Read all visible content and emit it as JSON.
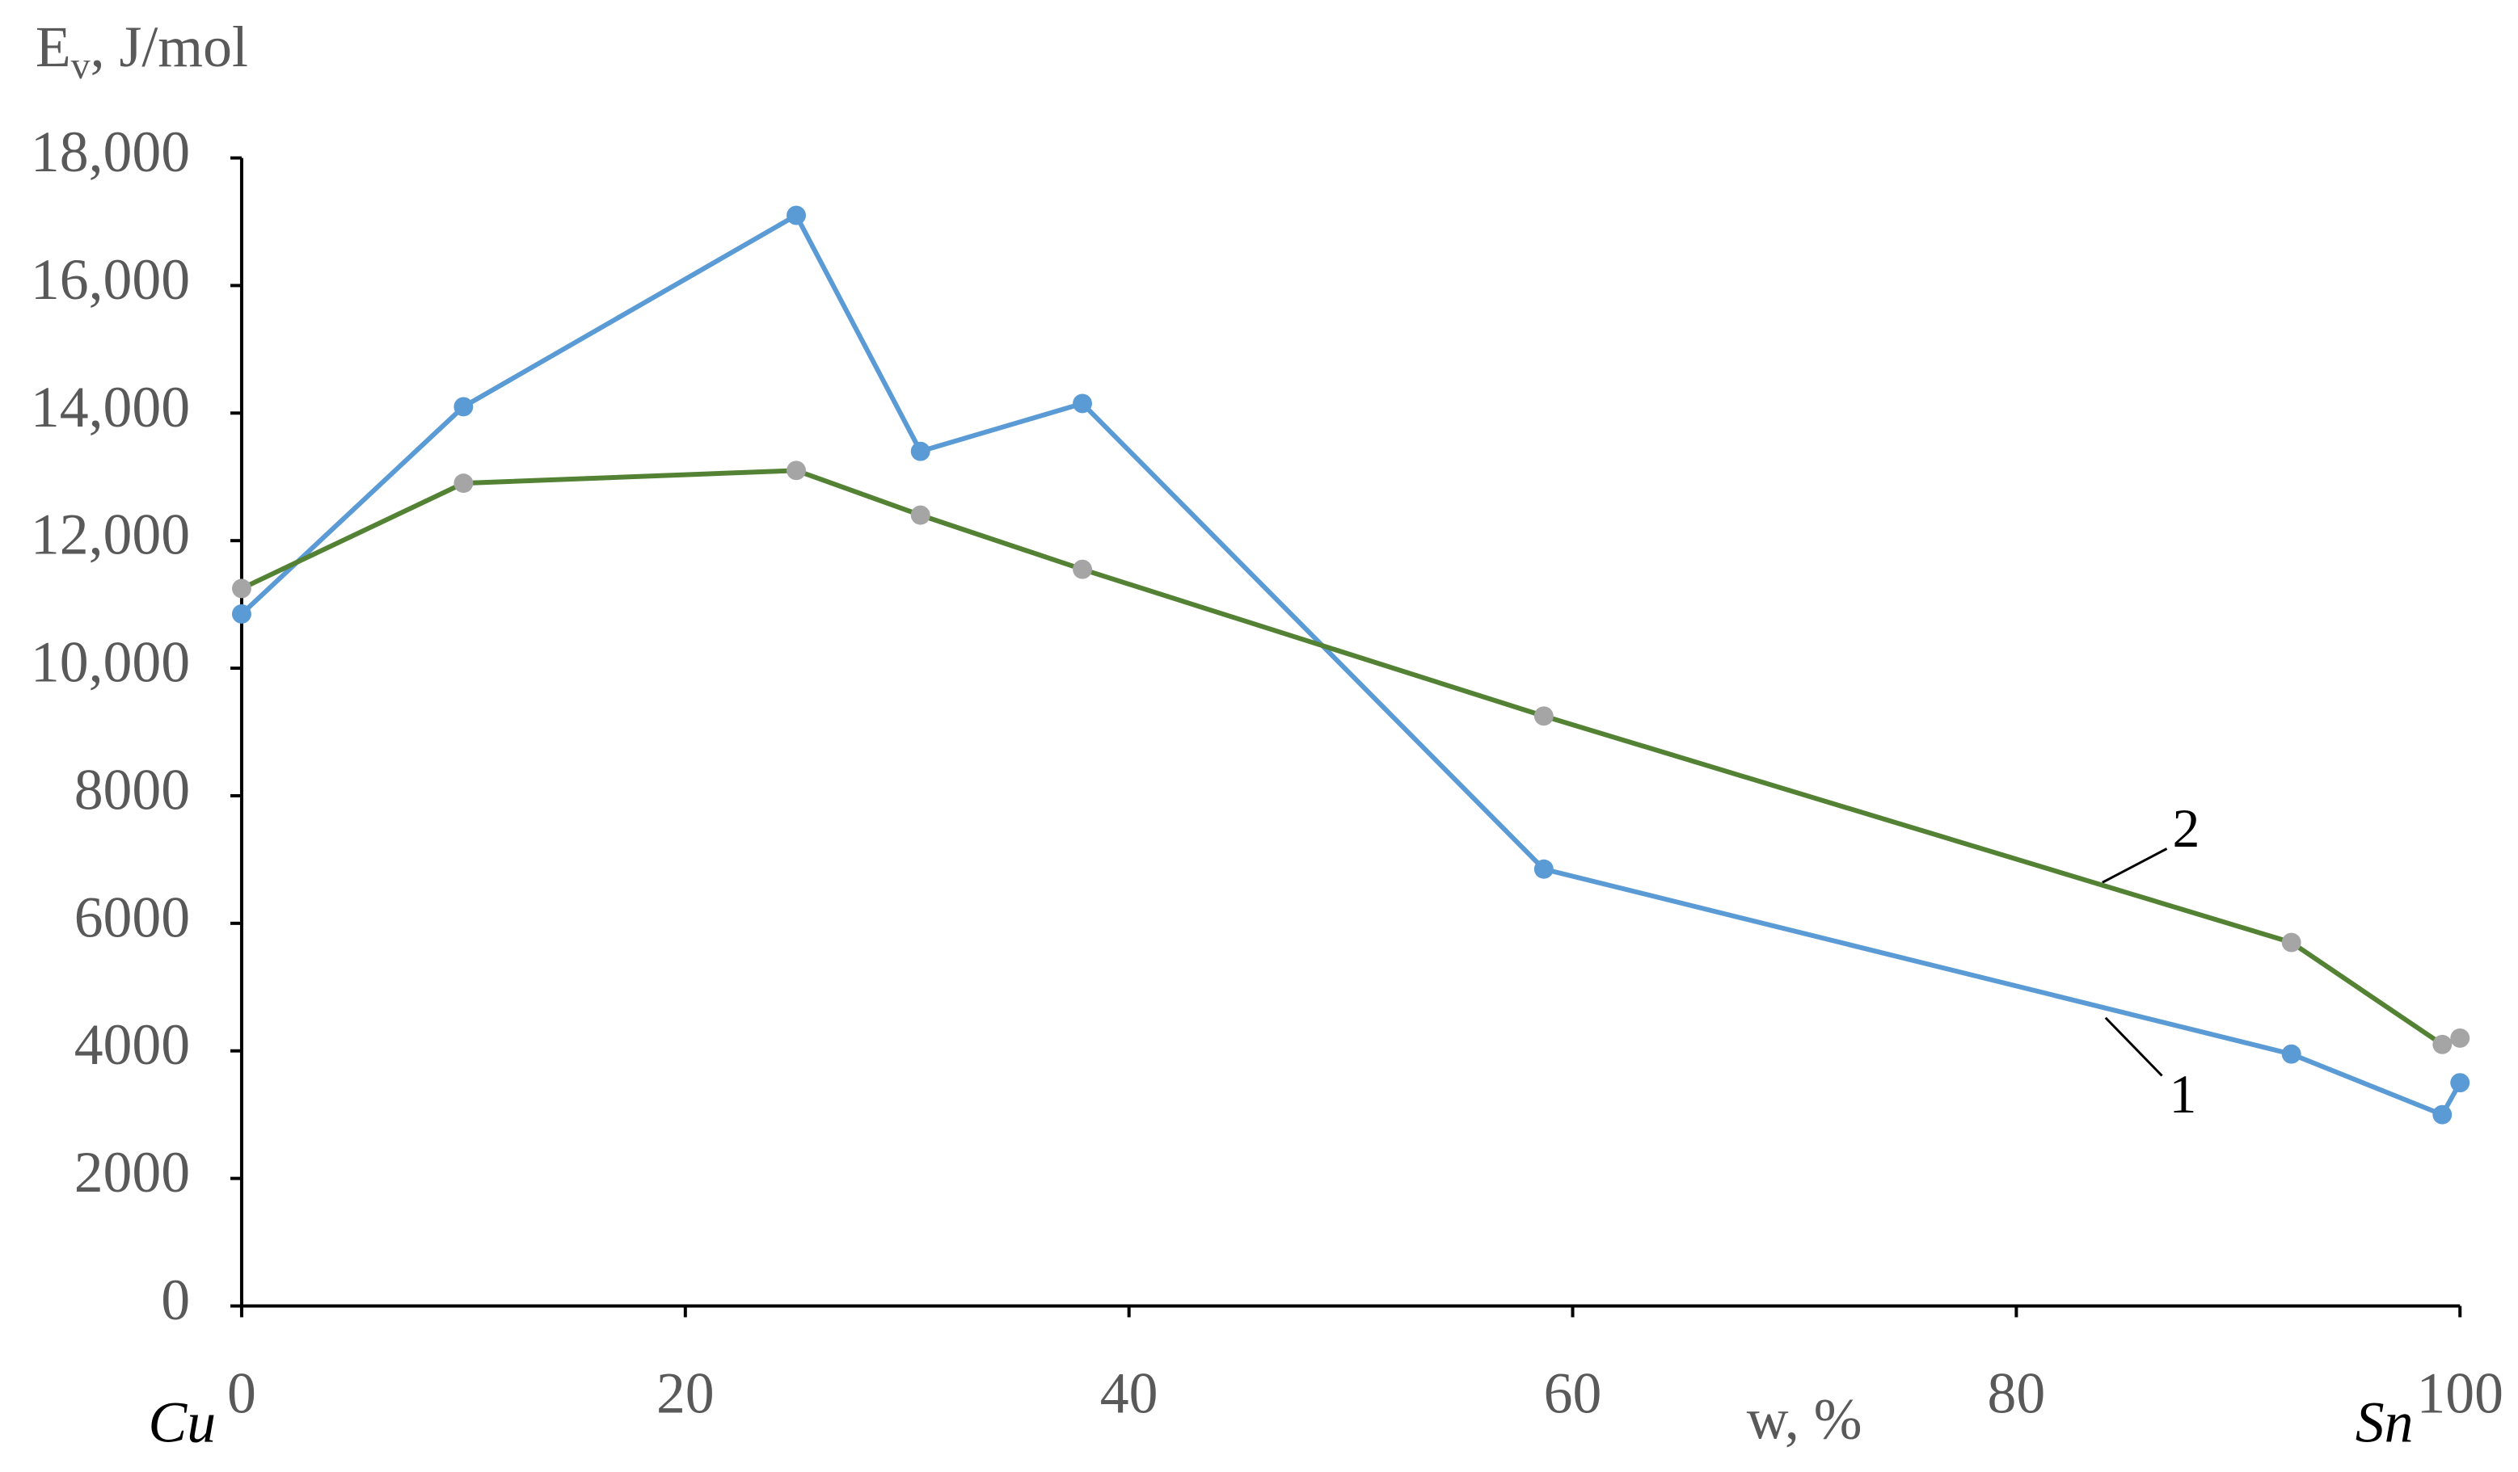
{
  "chart_data": {
    "type": "line",
    "y_label": {
      "main": "E",
      "sub": "v",
      "rest": ", J/mol"
    },
    "x_label": "w, %",
    "annotations": {
      "left": "Cu",
      "right": "Sn",
      "series1": "1",
      "series2": "2"
    },
    "x": [
      0,
      10,
      25,
      30.6,
      37.9,
      58.7,
      92.4,
      99.2,
      100
    ],
    "series": [
      {
        "name": "1",
        "color": "#5b9bd5",
        "marker_color": "#5b9bd5",
        "values": [
          10850,
          14100,
          17100,
          13400,
          14150,
          6850,
          3950,
          3000,
          3500
        ]
      },
      {
        "name": "2",
        "color": "#548235",
        "marker_color": "#a5a5a5",
        "values": [
          11250,
          12900,
          13100,
          12400,
          11550,
          9250,
          5700,
          4100,
          4200
        ]
      }
    ],
    "xlim": [
      0,
      100
    ],
    "xticks": [
      0,
      20,
      40,
      60,
      80,
      100
    ],
    "ylim": [
      0,
      18000
    ],
    "yticks": [
      0,
      2000,
      4000,
      6000,
      8000,
      {
        "value": 10000,
        "label": "10,000"
      },
      {
        "value": 12000,
        "label": "12,000"
      },
      {
        "value": 14000,
        "label": "14,000"
      },
      {
        "value": 16000,
        "label": "16,000"
      },
      {
        "value": 18000,
        "label": "18,000"
      }
    ],
    "grid": false
  }
}
